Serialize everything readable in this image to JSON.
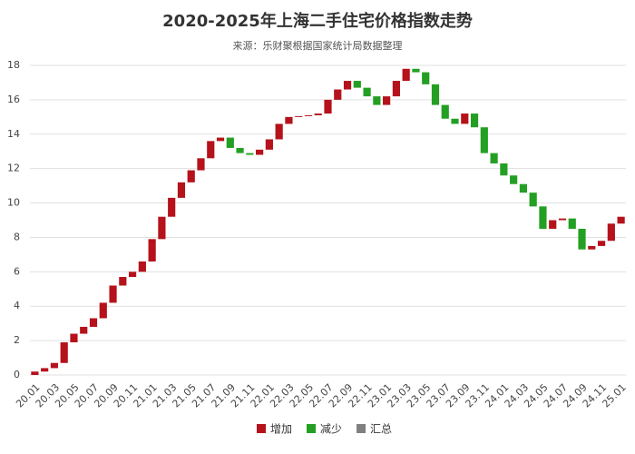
{
  "chart_data": {
    "type": "waterfall",
    "title": "2020-2025年上海二手住宅价格指数走势",
    "subtitle": "来源：乐财聚根据国家统计局数据整理",
    "categories": [
      "20.01",
      null,
      "20.03",
      null,
      "20.05",
      null,
      "20.07",
      null,
      "20.09",
      null,
      "20.11",
      null,
      "21.01",
      null,
      "21.03",
      null,
      "21.05",
      null,
      "21.07",
      null,
      "21.09",
      null,
      "21.11",
      null,
      "22.01",
      null,
      "22.03",
      null,
      "22.05",
      null,
      "22.07",
      null,
      "22.09",
      null,
      "22.11",
      null,
      "23.01",
      null,
      "23.03",
      null,
      "23.05",
      null,
      "23.07",
      null,
      "23.09",
      null,
      "23.11",
      null,
      "24.01",
      null,
      "24.03",
      null,
      "24.05",
      null,
      "24.07",
      null,
      "24.09",
      null,
      "24.11",
      null,
      "25.01"
    ],
    "values": [
      0.2,
      0.2,
      0.3,
      1.2,
      0.5,
      0.4,
      0.5,
      0.9,
      1.0,
      0.5,
      0.3,
      0.6,
      1.3,
      1.3,
      1.1,
      0.9,
      0.7,
      0.7,
      1.0,
      0.2,
      -0.6,
      -0.3,
      -0.1,
      0.3,
      0.6,
      0.9,
      0.4,
      0.05,
      0.05,
      0.1,
      0.8,
      0.6,
      0.5,
      -0.4,
      -0.5,
      -0.5,
      0.5,
      0.9,
      0.7,
      -0.2,
      -0.7,
      -1.2,
      -0.8,
      -0.3,
      0.6,
      -0.8,
      -1.5,
      -0.6,
      -0.7,
      -0.5,
      -0.5,
      -0.8,
      -1.3,
      0.5,
      0.1,
      -0.6,
      -1.2,
      0.2,
      0.3,
      1.0,
      0.4
    ],
    "legend": [
      {
        "name": "增加",
        "color": "#b5121b"
      },
      {
        "name": "减少",
        "color": "#23a023"
      },
      {
        "name": "汇总",
        "color": "#808080"
      }
    ],
    "ylim": [
      0,
      18
    ],
    "yticks": [
      0,
      2,
      4,
      6,
      8,
      10,
      12,
      14,
      16,
      18
    ],
    "grid": true
  }
}
